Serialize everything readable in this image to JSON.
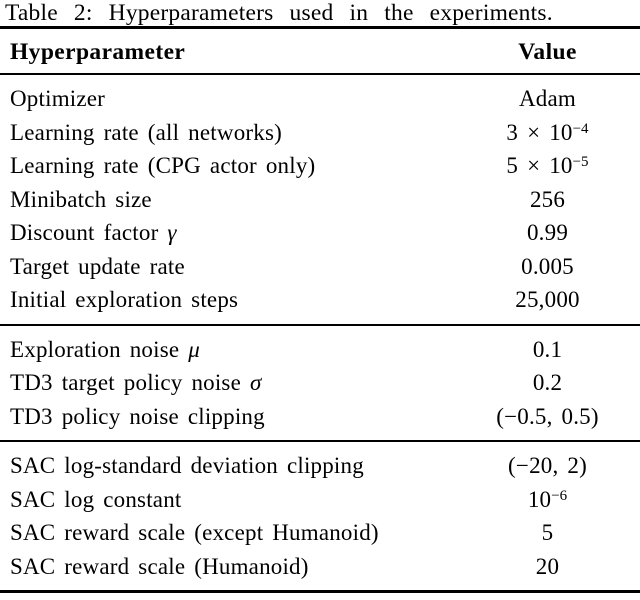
{
  "caption": "Table 2: Hyperparameters used in the experiments.",
  "table": {
    "headers": {
      "param": "Hyperparameter",
      "value": "Value"
    },
    "sections": [
      {
        "rows": [
          {
            "param": "Optimizer",
            "math": null,
            "value": "Adam",
            "sup": null
          },
          {
            "param": "Learning rate (all networks)",
            "math": null,
            "value": "3 × 10",
            "sup": "−4"
          },
          {
            "param": "Learning rate (CPG actor only)",
            "math": null,
            "value": "5 × 10",
            "sup": "−5"
          },
          {
            "param": "Minibatch size",
            "math": null,
            "value": "256",
            "sup": null
          },
          {
            "param": "Discount factor ",
            "math": "γ",
            "value": "0.99",
            "sup": null
          },
          {
            "param": "Target update rate",
            "math": null,
            "value": "0.005",
            "sup": null
          },
          {
            "param": "Initial exploration steps",
            "math": null,
            "value": "25,000",
            "sup": null
          }
        ]
      },
      {
        "rows": [
          {
            "param": "Exploration noise ",
            "math": "μ",
            "value": "0.1",
            "sup": null
          },
          {
            "param": "TD3 target policy noise ",
            "math": "σ",
            "value": "0.2",
            "sup": null
          },
          {
            "param": "TD3 policy noise clipping",
            "math": null,
            "value": "(−0.5, 0.5)",
            "sup": null
          }
        ]
      },
      {
        "rows": [
          {
            "param": "SAC log-standard deviation clipping",
            "math": null,
            "value": "(−20, 2)",
            "sup": null
          },
          {
            "param": "SAC log constant",
            "math": null,
            "value": "10",
            "sup": "−6"
          },
          {
            "param": "SAC reward scale (except Humanoid)",
            "math": null,
            "value": "5",
            "sup": null
          },
          {
            "param": "SAC reward scale (Humanoid)",
            "math": null,
            "value": "20",
            "sup": null
          }
        ]
      }
    ]
  },
  "colors": {
    "text": "#000000",
    "background": "#ffffff",
    "rule": "#000000"
  }
}
